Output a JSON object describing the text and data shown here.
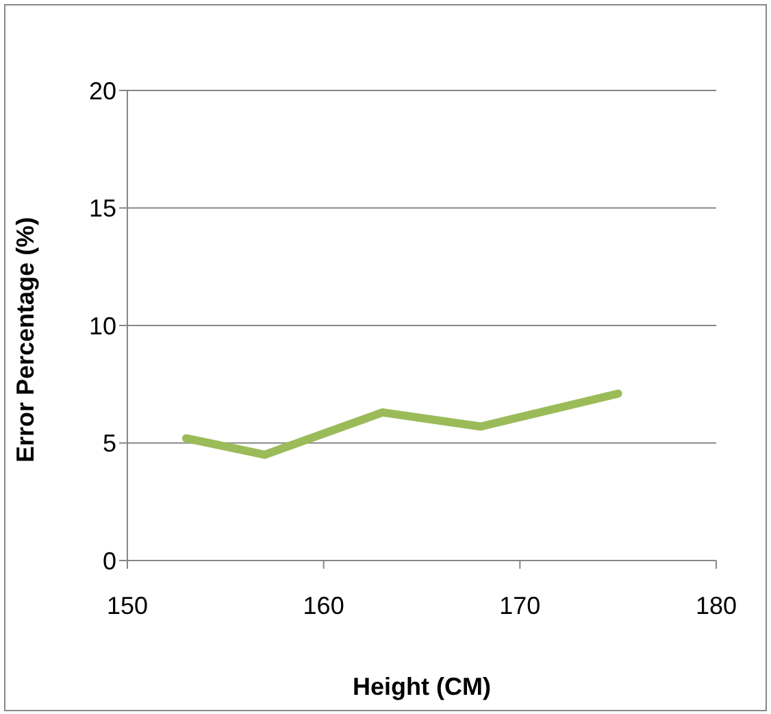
{
  "chart_data": {
    "type": "line",
    "xlabel": "Height (CM)",
    "ylabel": "Error Percentage (%)",
    "x": [
      153,
      157,
      163,
      168,
      175
    ],
    "series": [
      {
        "color": "#9bbb59",
        "values": [
          5.2,
          4.5,
          6.3,
          5.7,
          7.1
        ]
      }
    ],
    "xlim": [
      150,
      180
    ],
    "xticks": [
      150,
      160,
      170,
      180
    ],
    "ylim": [
      0,
      20
    ],
    "yticks": [
      0,
      5,
      10,
      15,
      20
    ],
    "grid": "y",
    "legend": false,
    "marker": "none",
    "line_style": "solid"
  }
}
